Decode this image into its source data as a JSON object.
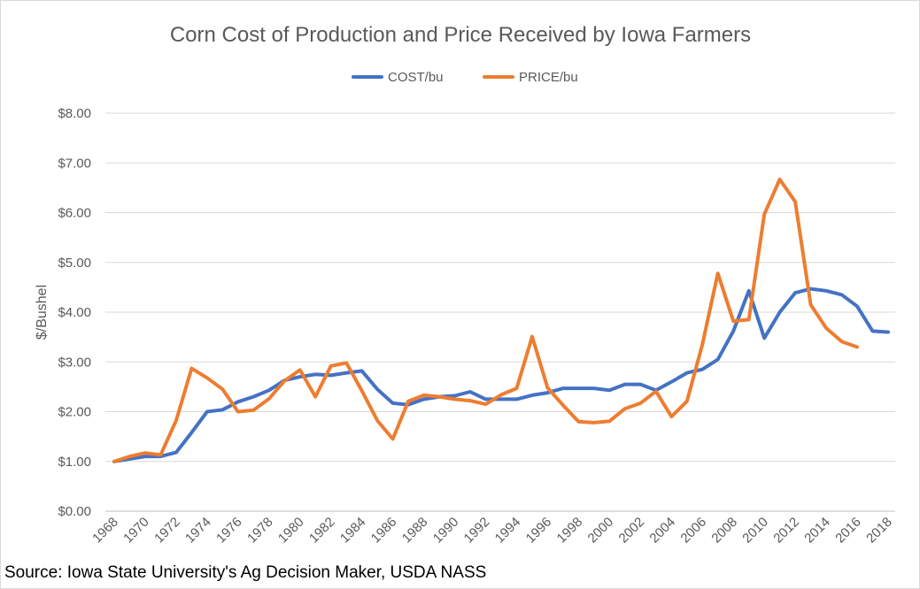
{
  "chart_data": {
    "type": "line",
    "title": "Corn Cost of Production and Price Received by Iowa Farmers",
    "ylabel": "$/Bushel",
    "xlabel": "",
    "ylim": [
      0,
      8
    ],
    "y_ticks": [
      "$0.00",
      "$1.00",
      "$2.00",
      "$3.00",
      "$4.00",
      "$5.00",
      "$6.00",
      "$7.00",
      "$8.00"
    ],
    "x_tick_labels": [
      "1968",
      "1970",
      "1972",
      "1974",
      "1976",
      "1978",
      "1980",
      "1982",
      "1984",
      "1986",
      "1988",
      "1990",
      "1992",
      "1994",
      "1996",
      "1998",
      "2000",
      "2002",
      "2004",
      "2006",
      "2008",
      "2010",
      "2012",
      "2014",
      "2016",
      "2018"
    ],
    "grid": true,
    "legend_position": "top",
    "x": [
      1968,
      1969,
      1970,
      1971,
      1972,
      1973,
      1974,
      1975,
      1976,
      1977,
      1978,
      1979,
      1980,
      1981,
      1982,
      1983,
      1984,
      1985,
      1986,
      1987,
      1988,
      1989,
      1990,
      1991,
      1992,
      1993,
      1994,
      1995,
      1996,
      1997,
      1998,
      1999,
      2000,
      2001,
      2002,
      2003,
      2004,
      2005,
      2006,
      2007,
      2008,
      2009,
      2010,
      2011,
      2012,
      2013,
      2014,
      2015,
      2016,
      2017,
      2018
    ],
    "series": [
      {
        "name": "COST/bu",
        "color": "#4472c4",
        "values": [
          1.0,
          1.05,
          1.1,
          1.1,
          1.18,
          1.58,
          2.0,
          2.04,
          2.2,
          2.3,
          2.43,
          2.63,
          2.7,
          2.75,
          2.73,
          2.78,
          2.82,
          2.45,
          2.17,
          2.14,
          2.25,
          2.3,
          2.32,
          2.4,
          2.25,
          2.25,
          2.25,
          2.33,
          2.38,
          2.47,
          2.47,
          2.47,
          2.43,
          2.55,
          2.55,
          2.43,
          2.6,
          2.78,
          2.85,
          3.05,
          3.62,
          4.43,
          3.48,
          4.0,
          4.39,
          4.47,
          4.43,
          4.35,
          4.12,
          3.62,
          3.6
        ]
      },
      {
        "name": "PRICE/bu",
        "color": "#ed7d31",
        "values": [
          1.0,
          1.1,
          1.17,
          1.13,
          1.82,
          2.87,
          2.68,
          2.45,
          2.0,
          2.03,
          2.26,
          2.62,
          2.84,
          2.3,
          2.92,
          2.98,
          2.42,
          1.82,
          1.45,
          2.21,
          2.33,
          2.3,
          2.25,
          2.22,
          2.15,
          2.34,
          2.47,
          3.51,
          2.48,
          2.13,
          1.8,
          1.78,
          1.81,
          2.06,
          2.17,
          2.41,
          1.9,
          2.21,
          3.35,
          4.78,
          3.82,
          3.85,
          5.97,
          6.67,
          6.22,
          4.15,
          3.68,
          3.41,
          3.3,
          null,
          null
        ]
      }
    ]
  },
  "source_text": "Source: Iowa State University's Ag Decision Maker, USDA NASS"
}
